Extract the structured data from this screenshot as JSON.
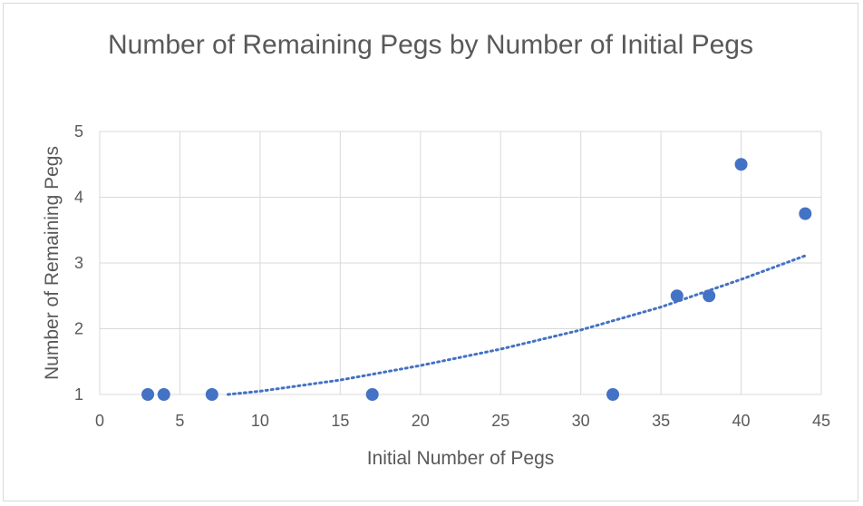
{
  "chart_data": {
    "type": "scatter",
    "title": "Number of Remaining Pegs by Number of Initial Pegs",
    "xlabel": "Initial Number of Pegs",
    "ylabel": "Number of Remaining Pegs",
    "xlim": [
      0,
      45
    ],
    "ylim": [
      1,
      5
    ],
    "xticks": [
      "0",
      "5",
      "10",
      "15",
      "20",
      "25",
      "30",
      "35",
      "40",
      "45"
    ],
    "yticks": [
      "1",
      "2",
      "3",
      "4",
      "5"
    ],
    "grid": true,
    "legend": "none",
    "series": [
      {
        "points": [
          {
            "x": 3,
            "y": 1
          },
          {
            "x": 4,
            "y": 1
          },
          {
            "x": 7,
            "y": 1
          },
          {
            "x": 17,
            "y": 1
          },
          {
            "x": 32,
            "y": 1
          },
          {
            "x": 36,
            "y": 2.5
          },
          {
            "x": 38,
            "y": 2.5
          },
          {
            "x": 40,
            "y": 4.5
          },
          {
            "x": 44,
            "y": 3.75
          }
        ],
        "color": "#4472c4"
      }
    ],
    "trendline": {
      "style": "dotted",
      "color": "#4472c4",
      "points": [
        {
          "x": 8,
          "y": 1.0
        },
        {
          "x": 10,
          "y": 1.05
        },
        {
          "x": 15,
          "y": 1.22
        },
        {
          "x": 20,
          "y": 1.44
        },
        {
          "x": 25,
          "y": 1.69
        },
        {
          "x": 30,
          "y": 1.98
        },
        {
          "x": 35,
          "y": 2.33
        },
        {
          "x": 40,
          "y": 2.75
        },
        {
          "x": 44,
          "y": 3.11
        }
      ]
    }
  }
}
